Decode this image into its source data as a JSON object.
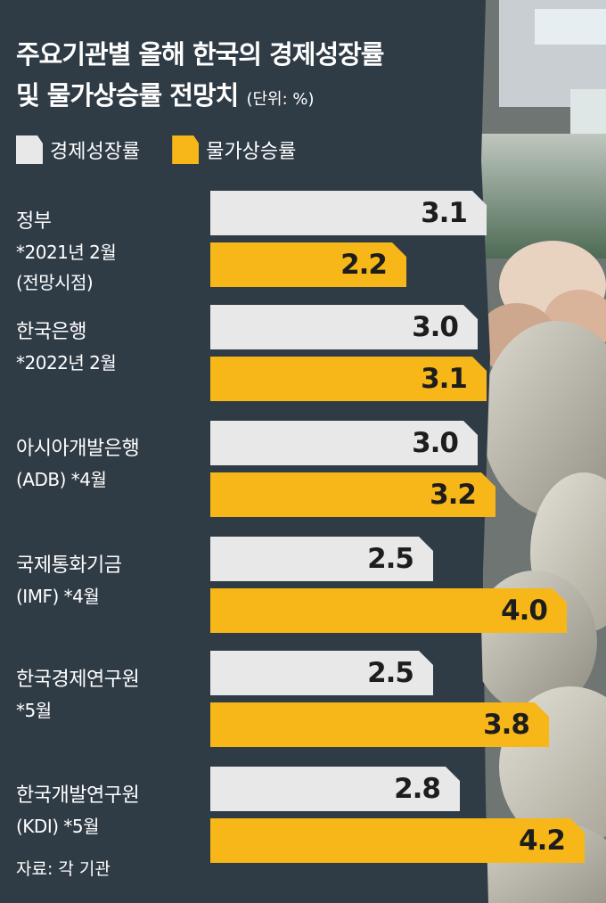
{
  "title_line1": "주요기관별 올해 한국의 경제성장률",
  "title_line2": "및 물가상승률 전망치",
  "unit": "(단위: %)",
  "legend": [
    {
      "label": "경제성장률",
      "color": "#e8e8e8"
    },
    {
      "label": "물가상승률",
      "color": "#f7b718"
    }
  ],
  "groups": [
    {
      "name": "정부",
      "notes": [
        "*2021년 2월",
        "(전망시점)"
      ]
    },
    {
      "name": "한국은행",
      "notes": [
        "*2022년 2월"
      ]
    },
    {
      "name": "아시아개발은행",
      "notes": [
        "(ADB) *4월"
      ]
    },
    {
      "name": "국제통화기금",
      "notes": [
        "(IMF) *4월"
      ]
    },
    {
      "name": "한국경제연구원",
      "notes": [
        "*5월"
      ]
    },
    {
      "name": "한국개발연구원",
      "notes": [
        "(KDI) *5월"
      ]
    }
  ],
  "source": "자료: 각 기관",
  "chart_data": {
    "type": "bar",
    "orientation": "horizontal",
    "categories": [
      "정부",
      "한국은행",
      "아시아개발은행",
      "국제통화기금",
      "한국경제연구원",
      "한국개발연구원"
    ],
    "series": [
      {
        "name": "경제성장률",
        "values": [
          "3.1",
          "3.0",
          "3.0",
          "2.5",
          "2.5",
          "2.8"
        ],
        "color": "#e8e8e8"
      },
      {
        "name": "물가상승률",
        "values": [
          "2.2",
          "3.1",
          "3.2",
          "4.0",
          "3.8",
          "4.2"
        ],
        "color": "#f7b718"
      }
    ],
    "ylabel": "",
    "xlabel": "",
    "xlim": [
      0,
      4.2
    ]
  }
}
